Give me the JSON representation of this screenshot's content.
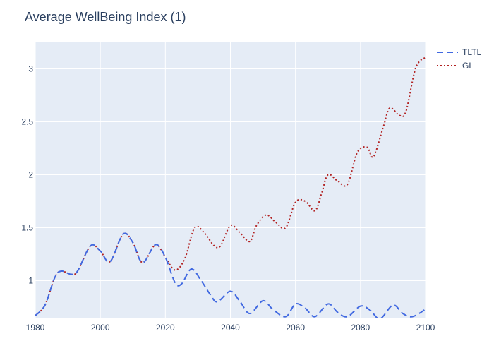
{
  "chart_data": {
    "type": "line",
    "title": "Average WellBeing Index (1)",
    "xlabel": "",
    "ylabel": "",
    "xlim": [
      1980,
      2100
    ],
    "ylim": [
      0.65,
      3.25
    ],
    "x_ticks": [
      1980,
      2000,
      2020,
      2040,
      2060,
      2080,
      2100
    ],
    "y_ticks": [
      1,
      1.5,
      2,
      2.5,
      3
    ],
    "grid": true,
    "legend_position": "top-right",
    "background_color": "#e5ecf6",
    "series": [
      {
        "name": "TLTL",
        "color": "#4169e1",
        "dash": "dashed",
        "x": [
          1980,
          1983,
          1986,
          1988,
          1991,
          1993,
          1997,
          2000,
          2003,
          2007,
          2010,
          2013,
          2017,
          2020,
          2023,
          2025,
          2028,
          2031,
          2034,
          2036,
          2040,
          2043,
          2046,
          2050,
          2053,
          2057,
          2060,
          2063,
          2066,
          2070,
          2073,
          2076,
          2080,
          2083,
          2086,
          2090,
          2093,
          2096,
          2100
        ],
        "y": [
          0.67,
          0.77,
          1.03,
          1.09,
          1.06,
          1.09,
          1.33,
          1.28,
          1.18,
          1.44,
          1.36,
          1.17,
          1.34,
          1.22,
          0.98,
          0.97,
          1.11,
          1.0,
          0.86,
          0.8,
          0.9,
          0.8,
          0.69,
          0.81,
          0.73,
          0.66,
          0.78,
          0.74,
          0.66,
          0.78,
          0.7,
          0.66,
          0.76,
          0.72,
          0.64,
          0.77,
          0.69,
          0.66,
          0.73
        ]
      },
      {
        "name": "GL",
        "color": "#b22222",
        "dash": "dotted",
        "x": [
          1980,
          1983,
          1986,
          1988,
          1991,
          1993,
          1997,
          2000,
          2003,
          2007,
          2010,
          2013,
          2017,
          2020,
          2023,
          2026,
          2029,
          2032,
          2035,
          2037,
          2040,
          2043,
          2046,
          2048,
          2051,
          2054,
          2057,
          2060,
          2063,
          2066,
          2068,
          2070,
          2073,
          2076,
          2079,
          2082,
          2084,
          2087,
          2089,
          2092,
          2094,
          2097,
          2100
        ],
        "y": [
          0.67,
          0.77,
          1.03,
          1.09,
          1.06,
          1.09,
          1.33,
          1.28,
          1.18,
          1.44,
          1.36,
          1.17,
          1.34,
          1.22,
          1.1,
          1.21,
          1.5,
          1.45,
          1.33,
          1.33,
          1.52,
          1.45,
          1.37,
          1.52,
          1.62,
          1.55,
          1.5,
          1.74,
          1.75,
          1.66,
          1.82,
          2.0,
          1.94,
          1.91,
          2.21,
          2.26,
          2.17,
          2.45,
          2.63,
          2.56,
          2.6,
          3.01,
          3.11
        ]
      }
    ]
  }
}
